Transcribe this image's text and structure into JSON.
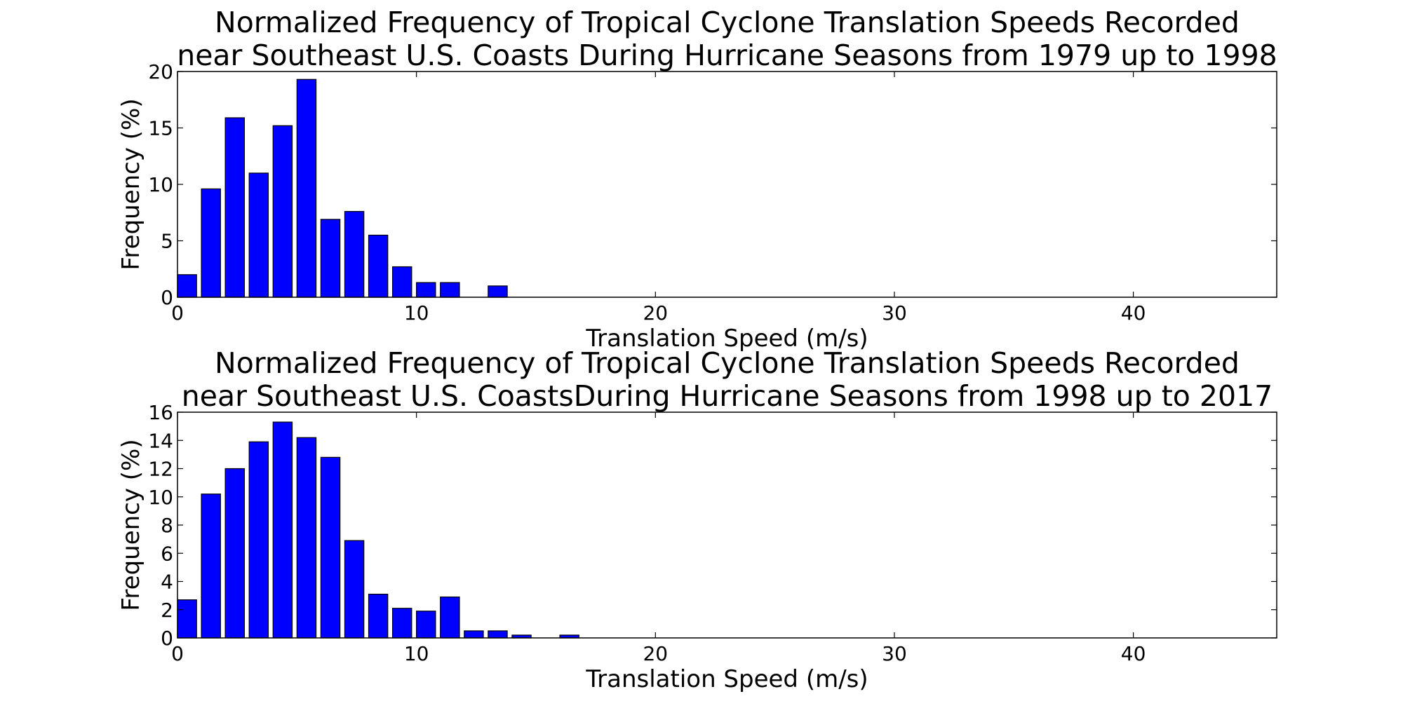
{
  "colors": {
    "bar_fill": "#0000ff",
    "bar_edge": "#000000",
    "axes": "#000000",
    "background": "#ffffff"
  },
  "chart_data": [
    {
      "type": "bar",
      "title_lines": [
        "Normalized Frequency of Tropical Cyclone Translation Speeds Recorded",
        "near Southeast U.S. Coasts During Hurricane Seasons from 1979 up to 1998"
      ],
      "xlabel": "Translation Speed (m/s)",
      "ylabel": "Frequency (%)",
      "xlim": [
        0,
        46
      ],
      "ylim": [
        0,
        20
      ],
      "xticks": [
        0,
        10,
        20,
        30,
        40
      ],
      "yticks": [
        0,
        5,
        10,
        15,
        20
      ],
      "bin_width": 1,
      "bar_width": 0.8,
      "x": [
        0,
        1,
        2,
        3,
        4,
        5,
        6,
        7,
        8,
        9,
        10,
        11,
        12,
        13,
        14,
        15,
        16,
        17,
        18,
        19,
        20,
        21,
        22,
        23,
        24,
        25,
        26,
        27,
        28,
        29,
        30,
        31,
        32,
        33,
        34,
        35,
        36,
        37,
        38,
        39,
        40,
        41,
        42,
        43,
        44,
        45
      ],
      "values": [
        2.0,
        9.6,
        15.9,
        11.0,
        15.2,
        19.3,
        6.9,
        7.6,
        5.5,
        2.7,
        1.3,
        1.3,
        0,
        1.0,
        0,
        0,
        0,
        0,
        0,
        0,
        0,
        0,
        0,
        0,
        0,
        0,
        0,
        0,
        0,
        0,
        0,
        0,
        0,
        0,
        0,
        0,
        0,
        0,
        0,
        0,
        0,
        0,
        0,
        0,
        0,
        0
      ],
      "grid": false
    },
    {
      "type": "bar",
      "title_lines": [
        "Normalized Frequency of Tropical Cyclone Translation Speeds Recorded",
        "near Southeast U.S. CoastsDuring Hurricane Seasons from 1998 up to 2017"
      ],
      "xlabel": "Translation Speed (m/s)",
      "ylabel": "Frequency (%)",
      "xlim": [
        0,
        46
      ],
      "ylim": [
        0,
        16
      ],
      "xticks": [
        0,
        10,
        20,
        30,
        40
      ],
      "yticks": [
        0,
        2,
        4,
        6,
        8,
        10,
        12,
        14,
        16
      ],
      "bin_width": 1,
      "bar_width": 0.8,
      "x": [
        0,
        1,
        2,
        3,
        4,
        5,
        6,
        7,
        8,
        9,
        10,
        11,
        12,
        13,
        14,
        15,
        16,
        17,
        18,
        19,
        20,
        21,
        22,
        23,
        24,
        25,
        26,
        27,
        28,
        29,
        30,
        31,
        32,
        33,
        34,
        35,
        36,
        37,
        38,
        39,
        40,
        41,
        42,
        43,
        44,
        45
      ],
      "values": [
        2.7,
        10.2,
        12.0,
        13.9,
        15.3,
        14.2,
        12.8,
        6.9,
        3.1,
        2.1,
        1.9,
        2.9,
        0.5,
        0.5,
        0.2,
        0,
        0.2,
        0,
        0,
        0,
        0,
        0,
        0,
        0,
        0,
        0,
        0,
        0,
        0,
        0,
        0,
        0,
        0,
        0,
        0,
        0,
        0,
        0,
        0,
        0,
        0,
        0,
        0,
        0,
        0,
        0
      ],
      "grid": false
    }
  ]
}
